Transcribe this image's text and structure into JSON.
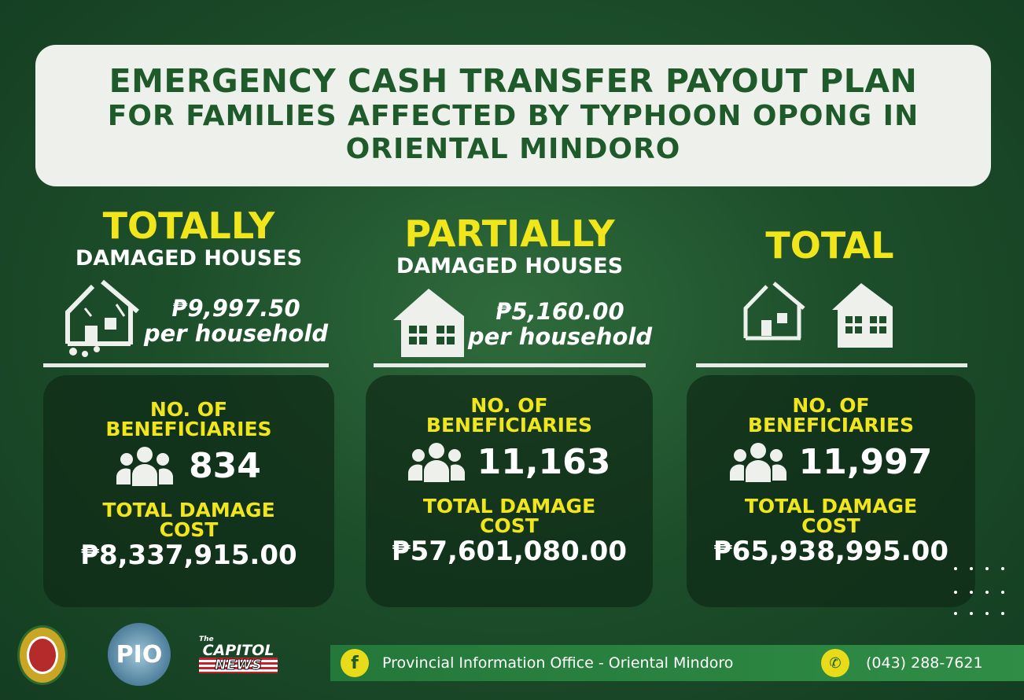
{
  "header": {
    "title": "EMERGENCY CASH TRANSFER PAYOUT PLAN",
    "subtitle_line1": "FOR FAMILIES AFFECTED BY TYPHOON OPONG IN",
    "subtitle_line2": "ORIENTAL MINDORO"
  },
  "columns": [
    {
      "heading": "TOTALLY",
      "subheading": "DAMAGED HOUSES",
      "amount": "₱9,997.50",
      "per": "per household",
      "beneficiaries_label": "NO. OF BENEFICIARIES",
      "beneficiaries": "834",
      "cost_label_1": "TOTAL DAMAGE",
      "cost_label_2": "COST",
      "cost": "₱8,337,915.00",
      "icon": "destroyed-house-icon"
    },
    {
      "heading": "PARTIALLY",
      "subheading": "DAMAGED HOUSES",
      "amount": "₱5,160.00",
      "per": "per household",
      "beneficiaries_label": "NO. OF BENEFICIARIES",
      "beneficiaries": "11,163",
      "cost_label_1": "TOTAL DAMAGE",
      "cost_label_2": "COST",
      "cost": "₱57,601,080.00",
      "icon": "damaged-house-icon"
    },
    {
      "heading": "TOTAL",
      "beneficiaries_label": "NO. OF BENEFICIARIES",
      "beneficiaries": "11,997",
      "cost_label_1": "TOTAL DAMAGE",
      "cost_label_2": "COST",
      "cost": "₱65,938,995.00"
    }
  ],
  "footer": {
    "logos": {
      "seal": "PROVINCE OF ORIENTAL MINDORO OFFICIAL SEAL",
      "pio": "PIO",
      "capitol_top": "The",
      "capitol": "CAPITOL",
      "news": "NEWS"
    },
    "facebook": "Provincial Information Office - Oriental Mindoro",
    "phone": "(043) 288-7621"
  },
  "colors": {
    "accent_yellow": "#f1e51c",
    "dark_green": "#1f5a2a",
    "background": "#1d4f2b"
  }
}
